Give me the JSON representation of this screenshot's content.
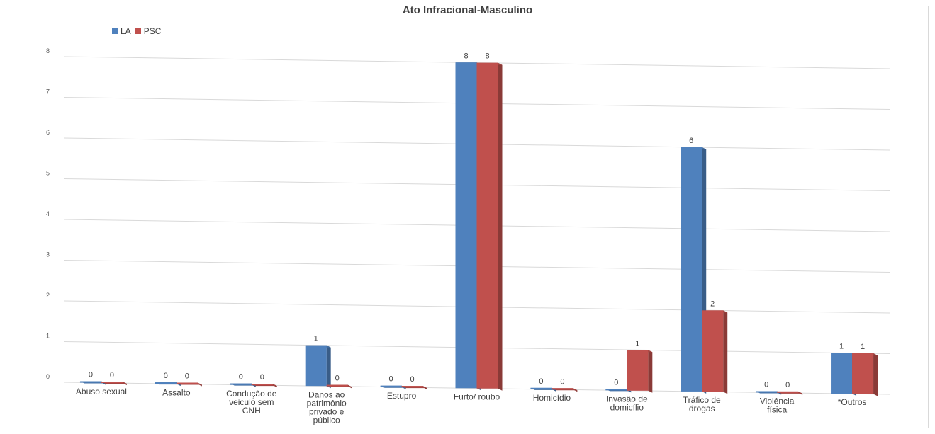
{
  "chart_data": {
    "type": "bar",
    "title": "Ato Infracional-Masculino",
    "categories": [
      "Abuso sexual",
      "Assalto",
      "Condução de veiculo sem CNH",
      "Danos ao patrimônio privado e público",
      "Estupro",
      "Furto/ roubo",
      "Homicídio",
      "Invasão de domicílio",
      "Tráfico de drogas",
      "Violência física",
      "*Outros"
    ],
    "category_lines": [
      [
        "Abuso sexual"
      ],
      [
        "Assalto"
      ],
      [
        "Condução de",
        "veiculo sem",
        "CNH"
      ],
      [
        "Danos ao",
        "patrimônio",
        "privado e",
        "público"
      ],
      [
        "Estupro"
      ],
      [
        "Furto/ roubo"
      ],
      [
        "Homicídio"
      ],
      [
        "Invasão de",
        "domicílio"
      ],
      [
        "Tráfico de",
        "drogas"
      ],
      [
        "Violência",
        "física"
      ],
      [
        "*Outros"
      ]
    ],
    "series": [
      {
        "name": "LA",
        "values": [
          0,
          0,
          0,
          1,
          0,
          8,
          0,
          0,
          6,
          0,
          1
        ],
        "color": "#4f81bd"
      },
      {
        "name": "PSC",
        "values": [
          0,
          0,
          0,
          0,
          0,
          8,
          0,
          1,
          2,
          0,
          1
        ],
        "color": "#c0504d"
      }
    ],
    "ylim": [
      0,
      8
    ],
    "yticks": [
      0,
      1,
      2,
      3,
      4,
      5,
      6,
      7,
      8
    ],
    "grid": true,
    "legend": "top-left",
    "xlabel": "",
    "ylabel": ""
  }
}
